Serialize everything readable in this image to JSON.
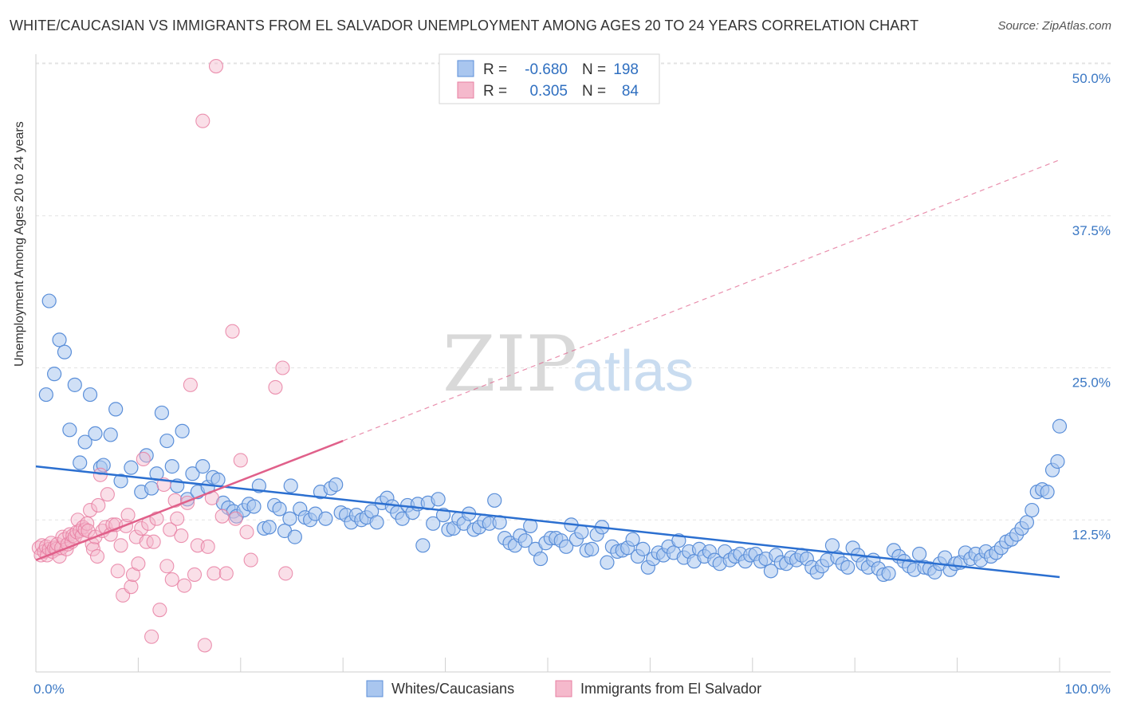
{
  "header": {
    "title": "WHITE/CAUCASIAN VS IMMIGRANTS FROM EL SALVADOR UNEMPLOYMENT AMONG AGES 20 TO 24 YEARS CORRELATION CHART",
    "source": "Source: ZipAtlas.com"
  },
  "watermark": {
    "zip": "ZIP",
    "atlas": "atlas"
  },
  "colors": {
    "blue": "#5b8fd9",
    "blue_fill": "#a9c6ef",
    "blue_line": "#2b6fd0",
    "pink": "#e77fa2",
    "pink_fill": "#f5b9cc",
    "pink_line": "#e0608a",
    "tick": "#3b78c4"
  },
  "legend": {
    "rows": [
      {
        "r_label": "R =",
        "r_value": "-0.680",
        "n_label": "N =",
        "n_value": "198"
      },
      {
        "r_label": "R =",
        "r_value": "0.305",
        "n_label": "N =",
        "n_value": "84"
      }
    ]
  },
  "bottom_legend": [
    {
      "label": "Whites/Caucasians"
    },
    {
      "label": "Immigrants from El Salvador"
    }
  ],
  "chart_data": {
    "type": "scatter",
    "xlabel": "",
    "ylabel": "Unemployment Among Ages 20 to 24 years",
    "xlim": [
      0,
      100
    ],
    "ylim": [
      0,
      50
    ],
    "x_tick_labels": [
      "0.0%",
      "100.0%"
    ],
    "y_ticks": [
      12.5,
      25.0,
      37.5,
      50.0
    ],
    "y_tick_labels": [
      "12.5%",
      "25.0%",
      "37.5%",
      "50.0%"
    ],
    "grid": "horizontal dashed",
    "legend_placement": "top-center",
    "series": [
      {
        "name": "Whites/Caucasians",
        "r": -0.68,
        "n": 198,
        "trend": {
          "x": [
            0,
            100
          ],
          "y": [
            16.9,
            7.8
          ]
        },
        "points": [
          [
            1.3,
            30.5
          ],
          [
            2.3,
            27.3
          ],
          [
            2.8,
            26.3
          ],
          [
            1,
            22.8
          ],
          [
            1.8,
            24.5
          ],
          [
            3.8,
            23.6
          ],
          [
            5.3,
            22.8
          ],
          [
            7.8,
            21.6
          ],
          [
            3.3,
            19.9
          ],
          [
            4.8,
            18.9
          ],
          [
            5.8,
            19.6
          ],
          [
            7.3,
            19.5
          ],
          [
            12.3,
            21.3
          ],
          [
            12.8,
            19
          ],
          [
            14.3,
            19.8
          ],
          [
            4.3,
            17.2
          ],
          [
            6.3,
            16.8
          ],
          [
            6.6,
            17
          ],
          [
            8.3,
            15.7
          ],
          [
            9.3,
            16.8
          ],
          [
            10.3,
            14.8
          ],
          [
            10.8,
            17.8
          ],
          [
            11.3,
            15.1
          ],
          [
            11.8,
            16.3
          ],
          [
            13.3,
            16.9
          ],
          [
            13.8,
            15.3
          ],
          [
            14.8,
            14.2
          ],
          [
            15.3,
            16.3
          ],
          [
            15.8,
            14.8
          ],
          [
            16.3,
            16.9
          ],
          [
            16.8,
            15.2
          ],
          [
            17.3,
            16
          ],
          [
            17.8,
            15.8
          ],
          [
            18.3,
            13.9
          ],
          [
            18.8,
            13.5
          ],
          [
            19.3,
            13.2
          ],
          [
            19.6,
            12.8
          ],
          [
            20.3,
            13.3
          ],
          [
            20.8,
            13.8
          ],
          [
            21.3,
            13.6
          ],
          [
            21.8,
            15.3
          ],
          [
            22.3,
            11.8
          ],
          [
            22.8,
            11.9
          ],
          [
            23.3,
            13.7
          ],
          [
            23.8,
            13.4
          ],
          [
            24.3,
            11.6
          ],
          [
            24.8,
            12.6
          ],
          [
            24.9,
            15.3
          ],
          [
            25.3,
            11.1
          ],
          [
            25.8,
            13.4
          ],
          [
            26.3,
            12.7
          ],
          [
            26.8,
            12.5
          ],
          [
            27.3,
            13
          ],
          [
            27.8,
            14.8
          ],
          [
            28.3,
            12.6
          ],
          [
            28.8,
            15.1
          ],
          [
            29.3,
            15.4
          ],
          [
            29.8,
            13.1
          ],
          [
            30.3,
            12.9
          ],
          [
            30.8,
            12.3
          ],
          [
            31.3,
            12.9
          ],
          [
            31.8,
            12.5
          ],
          [
            32.3,
            12.7
          ],
          [
            32.8,
            13.2
          ],
          [
            33.3,
            12.3
          ],
          [
            33.8,
            13.9
          ],
          [
            34.3,
            14.3
          ],
          [
            34.8,
            13.6
          ],
          [
            35.3,
            13.1
          ],
          [
            35.8,
            12.6
          ],
          [
            36.3,
            13.7
          ],
          [
            36.8,
            13.1
          ],
          [
            37.3,
            13.8
          ],
          [
            37.8,
            10.4
          ],
          [
            38.3,
            13.9
          ],
          [
            38.8,
            12.2
          ],
          [
            39.3,
            14.2
          ],
          [
            39.8,
            12.9
          ],
          [
            40.3,
            11.7
          ],
          [
            40.8,
            11.8
          ],
          [
            41.3,
            12.6
          ],
          [
            41.8,
            12.2
          ],
          [
            42.3,
            13
          ],
          [
            42.8,
            11.7
          ],
          [
            43.3,
            11.9
          ],
          [
            43.8,
            12.4
          ],
          [
            44.3,
            12.2
          ],
          [
            44.8,
            14.1
          ],
          [
            45.3,
            12.3
          ],
          [
            45.8,
            11
          ],
          [
            46.3,
            10.6
          ],
          [
            46.8,
            10.4
          ],
          [
            47.3,
            11.2
          ],
          [
            47.8,
            10.8
          ],
          [
            48.3,
            12
          ],
          [
            48.8,
            10.1
          ],
          [
            49.3,
            9.3
          ],
          [
            49.8,
            10.6
          ],
          [
            50.3,
            11
          ],
          [
            50.8,
            11
          ],
          [
            51.3,
            10.8
          ],
          [
            51.8,
            10.3
          ],
          [
            52.3,
            12.1
          ],
          [
            52.8,
            10.9
          ],
          [
            53.3,
            11.5
          ],
          [
            53.8,
            10
          ],
          [
            54.3,
            10.1
          ],
          [
            54.8,
            11.3
          ],
          [
            55.3,
            11.9
          ],
          [
            55.8,
            9
          ],
          [
            56.3,
            10.3
          ],
          [
            56.8,
            9.9
          ],
          [
            57.3,
            10
          ],
          [
            57.8,
            10.2
          ],
          [
            58.3,
            10.9
          ],
          [
            58.8,
            9.5
          ],
          [
            59.3,
            10.1
          ],
          [
            59.8,
            8.6
          ],
          [
            60.3,
            9.3
          ],
          [
            60.8,
            9.8
          ],
          [
            61.3,
            9.6
          ],
          [
            61.8,
            10.3
          ],
          [
            62.3,
            9.8
          ],
          [
            62.8,
            10.8
          ],
          [
            63.3,
            9.4
          ],
          [
            63.8,
            9.9
          ],
          [
            64.3,
            9.1
          ],
          [
            64.8,
            10.1
          ],
          [
            65.3,
            9.5
          ],
          [
            65.8,
            9.9
          ],
          [
            66.3,
            9.2
          ],
          [
            66.8,
            8.9
          ],
          [
            67.3,
            9.9
          ],
          [
            67.8,
            9.2
          ],
          [
            68.3,
            9.5
          ],
          [
            68.8,
            9.7
          ],
          [
            69.3,
            9.1
          ],
          [
            69.8,
            9.6
          ],
          [
            70.3,
            9.7
          ],
          [
            70.8,
            9.1
          ],
          [
            71.3,
            9.3
          ],
          [
            71.8,
            8.3
          ],
          [
            72.3,
            9.6
          ],
          [
            72.8,
            9
          ],
          [
            73.3,
            8.9
          ],
          [
            73.8,
            9.4
          ],
          [
            74.3,
            9.2
          ],
          [
            74.8,
            9.6
          ],
          [
            75.3,
            9.3
          ],
          [
            75.8,
            8.6
          ],
          [
            76.3,
            8.2
          ],
          [
            76.8,
            8.7
          ],
          [
            77.3,
            9.2
          ],
          [
            77.8,
            10.4
          ],
          [
            78.3,
            9.4
          ],
          [
            78.8,
            8.9
          ],
          [
            79.3,
            8.6
          ],
          [
            79.8,
            10.2
          ],
          [
            80.3,
            9.6
          ],
          [
            80.8,
            8.9
          ],
          [
            81.3,
            8.6
          ],
          [
            81.8,
            9.2
          ],
          [
            82.3,
            8.5
          ],
          [
            82.8,
            8
          ],
          [
            83.3,
            8.1
          ],
          [
            83.8,
            10
          ],
          [
            84.3,
            9.5
          ],
          [
            84.8,
            9.1
          ],
          [
            85.3,
            8.7
          ],
          [
            85.8,
            8.4
          ],
          [
            86.3,
            9.7
          ],
          [
            86.8,
            8.6
          ],
          [
            87.3,
            8.5
          ],
          [
            87.8,
            8.2
          ],
          [
            88.3,
            8.9
          ],
          [
            88.8,
            9.4
          ],
          [
            89.3,
            8.4
          ],
          [
            89.8,
            8.9
          ],
          [
            90.3,
            9
          ],
          [
            90.8,
            9.8
          ],
          [
            91.3,
            9.3
          ],
          [
            91.8,
            9.7
          ],
          [
            92.3,
            9.2
          ],
          [
            92.8,
            9.9
          ],
          [
            93.3,
            9.5
          ],
          [
            93.8,
            9.8
          ],
          [
            94.3,
            10.2
          ],
          [
            94.8,
            10.7
          ],
          [
            95.3,
            10.9
          ],
          [
            95.8,
            11.3
          ],
          [
            96.3,
            11.8
          ],
          [
            96.8,
            12.3
          ],
          [
            97.3,
            13.3
          ],
          [
            97.8,
            14.8
          ],
          [
            98.3,
            15
          ],
          [
            98.8,
            14.8
          ],
          [
            99.3,
            16.6
          ],
          [
            99.8,
            17.3
          ],
          [
            100,
            20.2
          ]
        ]
      },
      {
        "name": "Immigrants from El Salvador",
        "r": 0.305,
        "n": 84,
        "trend_solid": {
          "x": [
            0,
            30
          ],
          "y": [
            9.2,
            19.0
          ]
        },
        "trend_dashed": {
          "x": [
            30,
            100
          ],
          "y": [
            19.0,
            42.1
          ]
        },
        "points": [
          [
            0.3,
            10.2
          ],
          [
            0.5,
            9.6
          ],
          [
            0.6,
            10.4
          ],
          [
            0.8,
            9.9
          ],
          [
            1,
            10.3
          ],
          [
            1.1,
            9.6
          ],
          [
            1.3,
            10.1
          ],
          [
            1.5,
            10.6
          ],
          [
            1.6,
            9.9
          ],
          [
            1.8,
            10.2
          ],
          [
            2,
            10.1
          ],
          [
            2.1,
            10.5
          ],
          [
            2.3,
            9.5
          ],
          [
            2.5,
            10.2
          ],
          [
            2.6,
            11.1
          ],
          [
            2.8,
            10.9
          ],
          [
            3,
            10.1
          ],
          [
            3.1,
            10.5
          ],
          [
            3.3,
            11.3
          ],
          [
            3.5,
            10.7
          ],
          [
            3.6,
            11.2
          ],
          [
            3.8,
            11.1
          ],
          [
            4,
            11.5
          ],
          [
            4.1,
            12.5
          ],
          [
            4.3,
            11.6
          ],
          [
            4.5,
            11.2
          ],
          [
            4.6,
            11.9
          ],
          [
            4.8,
            11.7
          ],
          [
            5,
            12.2
          ],
          [
            5.1,
            11.6
          ],
          [
            5.3,
            13.3
          ],
          [
            5.5,
            10.5
          ],
          [
            5.6,
            10.1
          ],
          [
            5.8,
            11.1
          ],
          [
            6,
            9.5
          ],
          [
            6.1,
            13.7
          ],
          [
            6.3,
            16.2
          ],
          [
            6.5,
            11.6
          ],
          [
            6.8,
            11.9
          ],
          [
            7,
            14.6
          ],
          [
            7.3,
            11.3
          ],
          [
            7.5,
            12.1
          ],
          [
            7.8,
            12.1
          ],
          [
            8,
            8.3
          ],
          [
            8.3,
            10.4
          ],
          [
            8.5,
            6.3
          ],
          [
            8.8,
            12
          ],
          [
            9,
            12.9
          ],
          [
            9.3,
            7
          ],
          [
            9.5,
            8
          ],
          [
            9.8,
            11.1
          ],
          [
            10,
            8.9
          ],
          [
            10.3,
            11.8
          ],
          [
            10.5,
            17.5
          ],
          [
            10.8,
            10.7
          ],
          [
            11,
            12.2
          ],
          [
            11.3,
            2.9
          ],
          [
            11.5,
            10.7
          ],
          [
            11.8,
            12.6
          ],
          [
            12.1,
            5.1
          ],
          [
            12.5,
            15.4
          ],
          [
            12.8,
            8.7
          ],
          [
            13.1,
            11.7
          ],
          [
            13.3,
            7.6
          ],
          [
            13.6,
            14.1
          ],
          [
            13.8,
            12.6
          ],
          [
            14.2,
            11.2
          ],
          [
            14.5,
            7.1
          ],
          [
            14.8,
            13.9
          ],
          [
            15.1,
            23.6
          ],
          [
            15.5,
            8
          ],
          [
            15.8,
            10.4
          ],
          [
            16.3,
            45.3
          ],
          [
            16.5,
            2.2
          ],
          [
            16.8,
            10.3
          ],
          [
            17.2,
            14.3
          ],
          [
            17.4,
            8.1
          ],
          [
            17.6,
            49.8
          ],
          [
            18.2,
            12.8
          ],
          [
            18.6,
            8.1
          ],
          [
            19.2,
            28
          ],
          [
            19.5,
            12.6
          ],
          [
            20,
            17.4
          ],
          [
            20.6,
            11.5
          ],
          [
            21,
            9.2
          ],
          [
            23.4,
            23.4
          ],
          [
            24.1,
            25
          ],
          [
            24.4,
            8.1
          ]
        ]
      }
    ]
  }
}
